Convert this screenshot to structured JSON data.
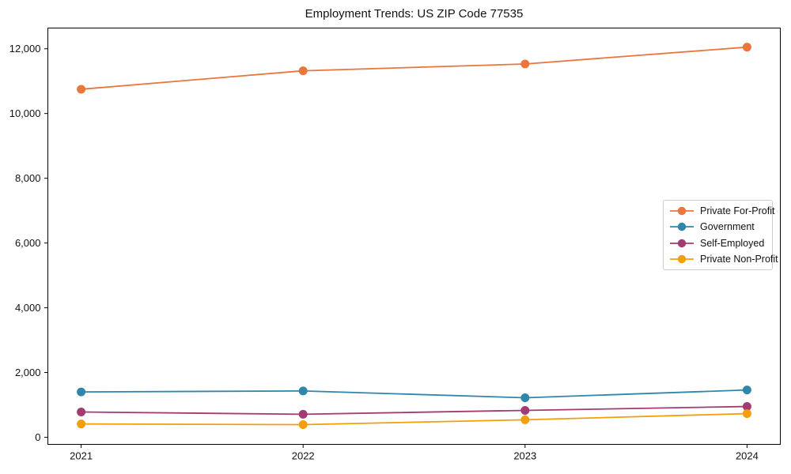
{
  "figure": {
    "background_color": "#ffffff",
    "text_color": "#111111",
    "spine_color": "#000000"
  },
  "chart_data": {
    "type": "line",
    "title": "Employment Trends: US ZIP Code 77535",
    "xlabel": "",
    "ylabel": "",
    "x": [
      2021,
      2022,
      2023,
      2024
    ],
    "x_tick_labels": [
      "2021",
      "2022",
      "2023",
      "2024"
    ],
    "series": [
      {
        "name": "Private For-Profit",
        "color": "#E8763D",
        "values": [
          10750,
          11320,
          11530,
          12050
        ]
      },
      {
        "name": "Government",
        "color": "#2E86AB",
        "values": [
          1400,
          1430,
          1220,
          1460
        ]
      },
      {
        "name": "Self-Employed",
        "color": "#A23B72",
        "values": [
          780,
          710,
          830,
          950
        ]
      },
      {
        "name": "Private Non-Profit",
        "color": "#F39E0B",
        "values": [
          410,
          390,
          540,
          730
        ]
      }
    ],
    "xlim": [
      2020.85,
      2024.15
    ],
    "ylim": [
      -220,
      12640
    ],
    "yticks": [
      0,
      2000,
      4000,
      6000,
      8000,
      10000,
      12000
    ],
    "ytick_labels": [
      "0",
      "2,000",
      "4,000",
      "6,000",
      "8,000",
      "10,000",
      "12,000"
    ],
    "grid": false,
    "marker": "circle",
    "legend_position": "center right"
  }
}
